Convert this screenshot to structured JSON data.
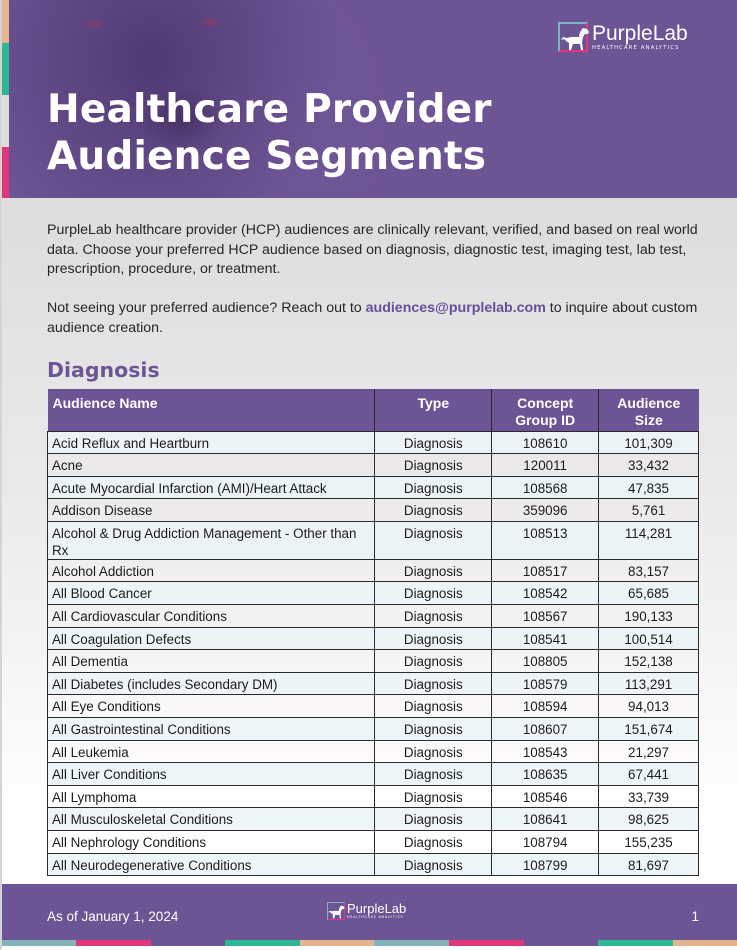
{
  "colors": {
    "brand_purple": "#6d5494",
    "accent_pink": "#e1377c",
    "accent_green": "#2eb795",
    "accent_tan": "#e3b58e",
    "accent_teal_gray": "#84b4bb",
    "link_purple": "#6a4d9a"
  },
  "header": {
    "logo": {
      "icon": "dog-logo-icon",
      "brand": "PurpleLab",
      "tagline": "HEALTHCARE ANALYTICS"
    },
    "title_line1": "Healthcare Provider",
    "title_line2": "Audience Segments"
  },
  "intro": {
    "paragraph1": "PurpleLab healthcare provider (HCP) audiences are clinically relevant, verified, and based on real world data. Choose your preferred HCP audience based on diagnosis, diagnostic test, imaging test, lab test, prescription, procedure, or treatment.",
    "paragraph2_before": "Not seeing your preferred audience? Reach out to ",
    "email": "audiences@purplelab.com",
    "paragraph2_after": " to inquire about custom audience creation."
  },
  "section": {
    "title": "Diagnosis",
    "table": {
      "headers": {
        "name": "Audience Name",
        "type": "Type",
        "id_line1": "Concept",
        "id_line2": "Group ID",
        "size_line1": "Audience",
        "size_line2": "Size"
      },
      "rows": [
        {
          "name": "Acid Reflux and Heartburn",
          "type": "Diagnosis",
          "id": "108610",
          "size": "101,309"
        },
        {
          "name": "Acne",
          "type": "Diagnosis",
          "id": "120011",
          "size": "33,432"
        },
        {
          "name": "Acute Myocardial Infarction (AMI)/Heart Attack",
          "type": "Diagnosis",
          "id": "108568",
          "size": "47,835"
        },
        {
          "name": "Addison Disease",
          "type": "Diagnosis",
          "id": "359096",
          "size": "5,761"
        },
        {
          "name": "Alcohol & Drug Addiction Management - Other than Rx",
          "type": "Diagnosis",
          "id": "108513",
          "size": "114,281"
        },
        {
          "name": "Alcohol Addiction",
          "type": "Diagnosis",
          "id": "108517",
          "size": "83,157"
        },
        {
          "name": "All Blood Cancer",
          "type": "Diagnosis",
          "id": "108542",
          "size": "65,685"
        },
        {
          "name": "All Cardiovascular Conditions",
          "type": "Diagnosis",
          "id": "108567",
          "size": "190,133"
        },
        {
          "name": "All Coagulation Defects",
          "type": "Diagnosis",
          "id": "108541",
          "size": "100,514"
        },
        {
          "name": "All Dementia",
          "type": "Diagnosis",
          "id": "108805",
          "size": "152,138"
        },
        {
          "name": "All Diabetes (includes Secondary DM)",
          "type": "Diagnosis",
          "id": "108579",
          "size": "113,291"
        },
        {
          "name": "All Eye Conditions",
          "type": "Diagnosis",
          "id": "108594",
          "size": "94,013"
        },
        {
          "name": "All Gastrointestinal Conditions",
          "type": "Diagnosis",
          "id": "108607",
          "size": "151,674"
        },
        {
          "name": "All Leukemia",
          "type": "Diagnosis",
          "id": "108543",
          "size": "21,297"
        },
        {
          "name": "All Liver Conditions",
          "type": "Diagnosis",
          "id": "108635",
          "size": "67,441"
        },
        {
          "name": "All Lymphoma",
          "type": "Diagnosis",
          "id": "108546",
          "size": "33,739"
        },
        {
          "name": "All Musculoskeletal Conditions",
          "type": "Diagnosis",
          "id": "108641",
          "size": "98,625"
        },
        {
          "name": "All Nephrology Conditions",
          "type": "Diagnosis",
          "id": "108794",
          "size": "155,235"
        },
        {
          "name": "All Neurodegenerative Conditions",
          "type": "Diagnosis",
          "id": "108799",
          "size": "81,697"
        }
      ]
    }
  },
  "footer": {
    "date": "As of January 1, 2024",
    "page_number": "1",
    "logo": {
      "icon": "dog-logo-icon",
      "brand": "PurpleLab",
      "tagline": "HEALTHCARE ANALYTICS"
    }
  }
}
